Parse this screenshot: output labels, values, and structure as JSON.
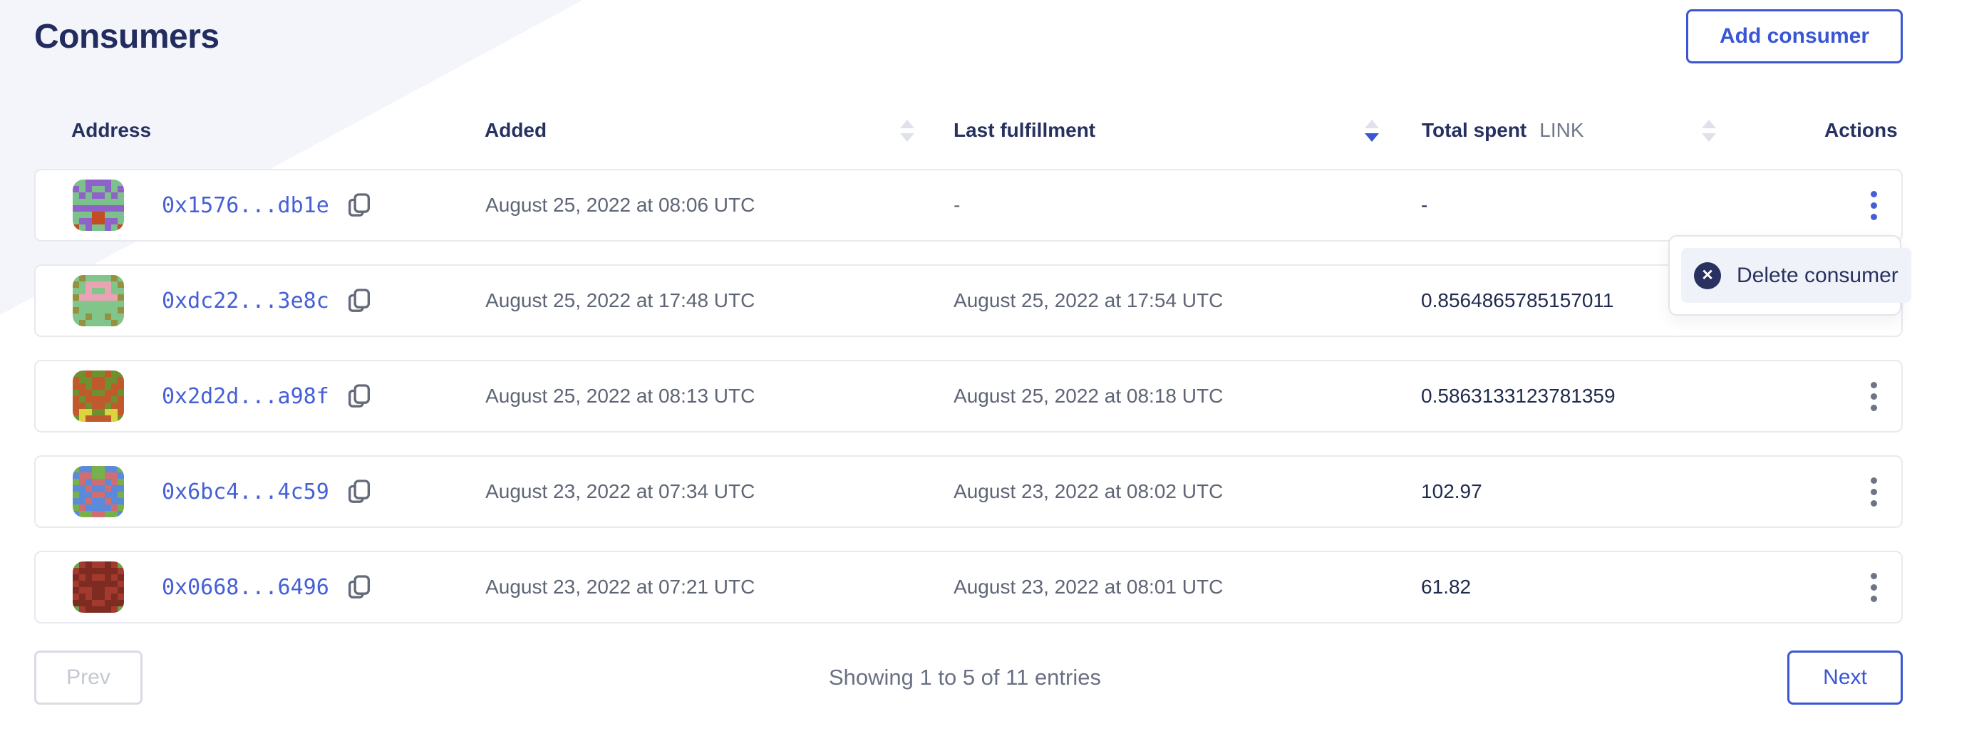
{
  "page": {
    "title": "Consumers"
  },
  "header": {
    "add_button_label": "Add consumer"
  },
  "colors": {
    "accent": "#3a56d4",
    "navy": "#27315f",
    "link_blue": "#4560d6",
    "wedge": "#f3f5fb",
    "active_sort": "#3a56d4"
  },
  "icons": {
    "delete_x": "✕",
    "copy": "copy-icon",
    "kebab": "kebab-menu-icon",
    "sort": "sort-arrows-icon"
  },
  "table": {
    "columns": [
      {
        "label": "Address",
        "sortable": false,
        "sort": "none"
      },
      {
        "label": "Added",
        "sortable": true,
        "sort": "none"
      },
      {
        "label": "Last fulfillment",
        "sortable": true,
        "sort": "desc"
      },
      {
        "label": "Total spent",
        "unit": "LINK",
        "sortable": true,
        "sort": "none"
      },
      {
        "label": "Actions",
        "sortable": false,
        "sort": "none"
      }
    ],
    "rows": [
      {
        "address": "0x1576...db1e",
        "added": "August 25, 2022 at 08:06 UTC",
        "last_fulfillment": "-",
        "total_spent": "-",
        "menu_open": true,
        "avatar": {
          "palette": {
            "g": "#7cc08c",
            "p": "#8e62c9",
            "r": "#c44b22"
          },
          "grid": [
            "ggppppgg",
            "pgpggpgp",
            "gpgppgpg",
            "gggggggg",
            "pppppppp",
            "gggrrggg",
            "gpprrppg",
            "rgpggpgr"
          ]
        }
      },
      {
        "address": "0xdc22...3e8c",
        "added": "August 25, 2022 at 17:48 UTC",
        "last_fulfillment": "August 25, 2022 at 17:54 UTC",
        "total_spent": "0.8564865785157011",
        "menu_open": false,
        "avatar": {
          "palette": {
            "g": "#82c58b",
            "o": "#96913f",
            "k": "#eaa3b5"
          },
          "grid": [
            "goggggog",
            "ogkkkkgo",
            "ggkggkgg",
            "okkkkkko",
            "gggggggg",
            "oggggggo",
            "ggoggogg",
            "goggggog"
          ]
        }
      },
      {
        "address": "0x2d2d...a98f",
        "added": "August 25, 2022 at 08:13 UTC",
        "last_fulfillment": "August 25, 2022 at 08:18 UTC",
        "total_spent": "0.5863133123781359",
        "menu_open": false,
        "avatar": {
          "palette": {
            "r": "#c05a2c",
            "v": "#70902f",
            "y": "#ddd23f"
          },
          "grid": [
            "vvrvvrvv",
            "rvvrrvvr",
            "rrvrrvrr",
            "vrrvvrrv",
            "rvrrrrvr",
            "rrvrrvrr",
            "ryyvvyyr",
            "vyrrrryv"
          ]
        }
      },
      {
        "address": "0x6bc4...4c59",
        "added": "August 23, 2022 at 07:34 UTC",
        "last_fulfillment": "August 23, 2022 at 08:02 UTC",
        "total_spent": "102.97",
        "menu_open": false,
        "avatar": {
          "palette": {
            "b": "#5a8ad9",
            "n": "#76b14d",
            "k": "#cf6e72"
          },
          "grid": [
            "nbbnnbbn",
            "bkknnkkb",
            "nkbkkbkn",
            "bbkbbkbb",
            "nbbkkbbn",
            "bbkbbkbb",
            "nkbbbbkn",
            "bnnkknnb"
          ]
        }
      },
      {
        "address": "0x0668...6496",
        "added": "August 23, 2022 at 07:21 UTC",
        "last_fulfillment": "August 23, 2022 at 08:01 UTC",
        "total_spent": "61.82",
        "menu_open": false,
        "avatar": {
          "palette": {
            "m": "#a33a2d",
            "d": "#7e2b22",
            "n": "#6da14b"
          },
          "grid": [
            "nmdmmdmn",
            "mddddddm",
            "dmdmmdmd",
            "mddddddm",
            "dmmddmmd",
            "mdmddmdm",
            "dddmmddd",
            "nmddddmn"
          ]
        }
      }
    ]
  },
  "menu": {
    "delete_label": "Delete consumer"
  },
  "pagination": {
    "prev_label": "Prev",
    "summary": "Showing 1 to 5 of 11 entries",
    "next_label": "Next"
  }
}
